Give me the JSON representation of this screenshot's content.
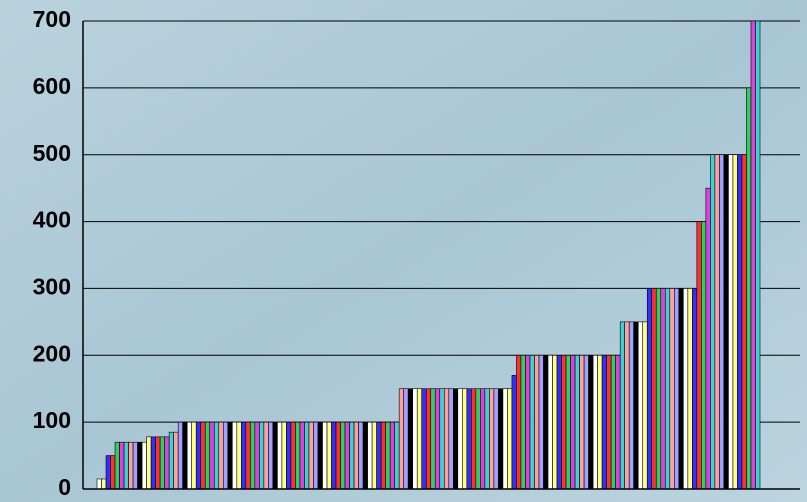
{
  "chart_data": {
    "type": "bar",
    "values": [
      15,
      15,
      50,
      50,
      70,
      70,
      70,
      70,
      70,
      70,
      70,
      78,
      78,
      78,
      78,
      78,
      85,
      85,
      100,
      100,
      100,
      100,
      100,
      100,
      100,
      100,
      100,
      100,
      100,
      100,
      100,
      100,
      100,
      100,
      100,
      100,
      100,
      100,
      100,
      100,
      100,
      100,
      100,
      100,
      100,
      100,
      100,
      100,
      100,
      100,
      100,
      100,
      100,
      100,
      100,
      100,
      100,
      100,
      100,
      100,
      100,
      100,
      100,
      100,
      100,
      100,
      100,
      150,
      150,
      150,
      150,
      150,
      150,
      150,
      150,
      150,
      150,
      150,
      150,
      150,
      150,
      150,
      150,
      150,
      150,
      150,
      150,
      150,
      150,
      150,
      150,
      150,
      170,
      200,
      200,
      200,
      200,
      200,
      200,
      200,
      200,
      200,
      200,
      200,
      200,
      200,
      200,
      200,
      200,
      200,
      200,
      200,
      200,
      200,
      200,
      200,
      250,
      250,
      250,
      250,
      250,
      250,
      300,
      300,
      300,
      300,
      300,
      300,
      300,
      300,
      300,
      300,
      300,
      400,
      400,
      450,
      500,
      500,
      500,
      500,
      500,
      500,
      500,
      500,
      600,
      700,
      700
    ],
    "palette": [
      "#ffffff",
      "#ffff80",
      "#3030ff",
      "#ff3030",
      "#30d060",
      "#e040e0",
      "#40d0d0",
      "#ffa0a0",
      "#a0a0ff",
      "#000000"
    ],
    "ylim": [
      0,
      700
    ],
    "yticks": [
      0,
      100,
      200,
      300,
      400,
      500,
      600,
      700
    ],
    "grid": true
  }
}
